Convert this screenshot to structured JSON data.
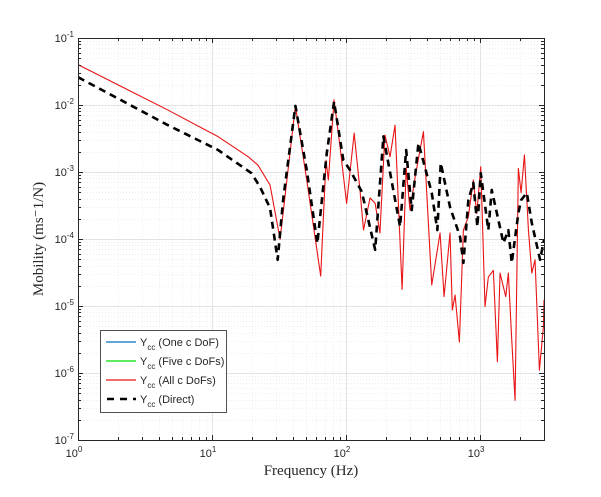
{
  "chart_data": {
    "type": "line",
    "title": "",
    "xlabel": "Frequency (Hz)",
    "ylabel": "Mobility (ms⁻1/N)",
    "xscale": "log",
    "yscale": "log",
    "xlim": [
      1,
      3000
    ],
    "ylim": [
      1e-07,
      0.1
    ],
    "grid": true,
    "minor_grid": true,
    "legend_position": "bottom-left",
    "x_ticks": [
      {
        "value": 1,
        "base": "10",
        "exp": "0"
      },
      {
        "value": 10,
        "base": "10",
        "exp": "1"
      },
      {
        "value": 100,
        "base": "10",
        "exp": "2"
      },
      {
        "value": 1000,
        "base": "10",
        "exp": "3"
      }
    ],
    "y_ticks": [
      {
        "value": 1e-07,
        "base": "10",
        "exp": "-7"
      },
      {
        "value": 1e-06,
        "base": "10",
        "exp": "-6"
      },
      {
        "value": 1e-05,
        "base": "10",
        "exp": "-5"
      },
      {
        "value": 0.0001,
        "base": "10",
        "exp": "-4"
      },
      {
        "value": 0.001,
        "base": "10",
        "exp": "-3"
      },
      {
        "value": 0.01,
        "base": "10",
        "exp": "-2"
      },
      {
        "value": 0.1,
        "base": "10",
        "exp": "-1"
      }
    ],
    "series": [
      {
        "name": "Y_cc (One c DoF)",
        "label_main": "Y",
        "label_sub": "cc",
        "label_rest": " (One c DoF)",
        "color": "#0072BD",
        "dash": "solid",
        "visible_in_plot": false,
        "x": [],
        "y": []
      },
      {
        "name": "Y_cc (Five c DoFs)",
        "label_main": "Y",
        "label_sub": "cc",
        "label_rest": " (Five c DoFs)",
        "color": "#00E000",
        "dash": "solid",
        "visible_in_plot": false,
        "x": [],
        "y": []
      },
      {
        "name": "Y_cc (All c DoFs)",
        "label_main": "Y",
        "label_sub": "cc",
        "label_rest": " (All c DoFs)",
        "color": "#E81416",
        "dash": "solid",
        "visible_in_plot": true,
        "x": [
          1,
          4.69,
          11.1,
          18.6,
          22.0,
          27.1,
          32.2,
          41.9,
          50.9,
          64.7,
          70.9,
          73.8,
          81.4,
          90.2,
          101,
          115,
          127,
          135,
          151,
          165,
          179,
          195,
          213,
          232,
          262,
          281,
          300,
          328,
          378,
          436,
          503,
          539,
          597,
          621,
          651,
          701,
          751,
          818,
          891,
          945,
          1012,
          1089,
          1153,
          1257,
          1347,
          1410,
          1555,
          1626,
          1724,
          1825,
          1931,
          2024,
          2143,
          2296,
          2433,
          2572,
          2772,
          2970,
          3000
        ],
        "y": [
          0.04,
          0.0084,
          0.00337,
          0.00169,
          0.00127,
          0.00064,
          9.9e-05,
          0.0097,
          0.00076,
          2.8e-05,
          0.0015,
          0.00076,
          0.0119,
          0.00239,
          0.00034,
          0.0038,
          0.00054,
          0.000136,
          0.00041,
          0.00034,
          0.000123,
          0.00356,
          0.00169,
          0.005,
          1.77e-05,
          0.00115,
          0.00027,
          0.00085,
          0.004,
          2.06e-05,
          0.000123,
          1.38e-05,
          0.000123,
          8.7e-06,
          1.46e-05,
          2.9e-06,
          0.000136,
          0.000215,
          0.00076,
          0.00024,
          0.0012,
          9.8e-06,
          2.7e-05,
          3.4e-05,
          1.48e-06,
          3.1e-05,
          1.38e-05,
          3.1e-05,
          3.1e-06,
          3.9e-07,
          0.00113,
          0.00049,
          0.0018,
          0.000136,
          3.1e-05,
          4.9e-05,
          1.1e-06,
          4.9e-06,
          1.23e-05
        ]
      },
      {
        "name": "Y_cc (Direct)",
        "label_main": "Y",
        "label_sub": "cc",
        "label_rest": " (Direct)",
        "color": "#000000",
        "dash": "dashed",
        "visible_in_plot": true,
        "x": [
          1,
          4.69,
          11.1,
          19.7,
          22.8,
          27.1,
          30.9,
          33.9,
          41.9,
          50.9,
          61.1,
          71.8,
          81.4,
          95.5,
          107,
          131,
          165,
          190,
          253,
          281,
          309,
          347,
          436,
          480,
          509,
          597,
          709,
          751,
          818,
          891,
          955,
          1012,
          1153,
          1222,
          1370,
          1494,
          1626,
          1724,
          1931,
          2024,
          2233,
          2433,
          2805,
          3000
        ],
        "y": [
          0.026,
          0.005,
          0.00213,
          0.00096,
          0.0006,
          0.00029,
          4.9e-05,
          0.00038,
          0.0097,
          0.00107,
          8.6e-05,
          0.0019,
          0.0112,
          0.0015,
          0.00107,
          0.00051,
          6.9e-05,
          0.0034,
          0.000153,
          0.00213,
          0.00027,
          0.0027,
          0.00049,
          0.000136,
          0.00136,
          0.0003,
          0.000108,
          4.4e-05,
          0.00038,
          0.00069,
          0.000153,
          0.00096,
          0.000136,
          0.00054,
          0.000192,
          8.7e-05,
          0.000136,
          4.4e-05,
          0.000244,
          0.00038,
          0.00049,
          0.000173,
          4.9e-05,
          9.7e-05
        ]
      }
    ]
  }
}
